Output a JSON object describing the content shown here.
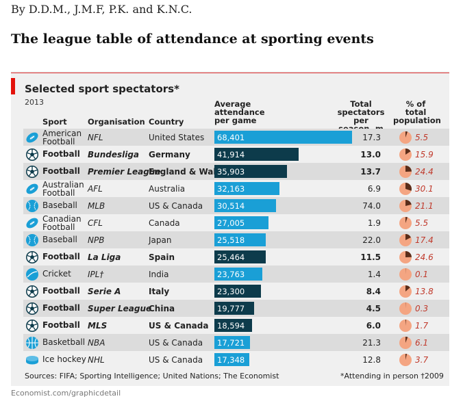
{
  "byline": "By D.D.M., J.M.F, P.K. and K.N.C.",
  "headline": "The league table of attendance at sporting events",
  "chart_data": {
    "type": "table",
    "title": "Selected sport spectators*",
    "subtitle": "2013",
    "columns": {
      "sport": "Sport",
      "organisation": "Organisation",
      "country": "Country",
      "attendance": "Average\nattendance\nper game",
      "total": "Total\nspectators per\nseason, m",
      "pct": "% of\ntotal\npopulation"
    },
    "attendance_max": 68401,
    "colors": {
      "football": "#0d3b4b",
      "other": "#1a9fd6",
      "pie_bg": "#f4a582",
      "pie_fill": "#5a2d1a",
      "pct_text": "#c0392b",
      "accent": "#e3120b"
    },
    "rows": [
      {
        "sport": "American\nFootball",
        "icon": "american-football-icon",
        "org": "NFL",
        "country": "United States",
        "attendance": 68401,
        "attendance_label": "68,401",
        "total": "17.3",
        "pct": 5.5,
        "pct_label": "5.5",
        "football": false
      },
      {
        "sport": "Football",
        "icon": "soccer-ball-icon",
        "org": "Bundesliga",
        "country": "Germany",
        "attendance": 41914,
        "attendance_label": "41,914",
        "total": "13.0",
        "pct": 15.9,
        "pct_label": "15.9",
        "football": true
      },
      {
        "sport": "Football",
        "icon": "soccer-ball-icon",
        "org": "Premier League",
        "country": "England & Wales",
        "attendance": 35903,
        "attendance_label": "35,903",
        "total": "13.7",
        "pct": 24.4,
        "pct_label": "24.4",
        "football": true
      },
      {
        "sport": "Australian\nFootball",
        "icon": "australian-football-icon",
        "org": "AFL",
        "country": "Australia",
        "attendance": 32163,
        "attendance_label": "32,163",
        "total": "6.9",
        "pct": 30.1,
        "pct_label": "30.1",
        "football": false
      },
      {
        "sport": "Baseball",
        "icon": "baseball-icon",
        "org": "MLB",
        "country": "US & Canada",
        "attendance": 30514,
        "attendance_label": "30,514",
        "total": "74.0",
        "pct": 21.1,
        "pct_label": "21.1",
        "football": false
      },
      {
        "sport": "Canadian\nFootball",
        "icon": "canadian-football-icon",
        "org": "CFL",
        "country": "Canada",
        "attendance": 27005,
        "attendance_label": "27,005",
        "total": "1.9",
        "pct": 5.5,
        "pct_label": "5.5",
        "football": false
      },
      {
        "sport": "Baseball",
        "icon": "baseball-icon",
        "org": "NPB",
        "country": "Japan",
        "attendance": 25518,
        "attendance_label": "25,518",
        "total": "22.0",
        "pct": 17.4,
        "pct_label": "17.4",
        "football": false
      },
      {
        "sport": "Football",
        "icon": "soccer-ball-icon",
        "org": "La Liga",
        "country": "Spain",
        "attendance": 25464,
        "attendance_label": "25,464",
        "total": "11.5",
        "pct": 24.6,
        "pct_label": "24.6",
        "football": true
      },
      {
        "sport": "Cricket",
        "icon": "cricket-ball-icon",
        "org": "IPL†",
        "country": "India",
        "attendance": 23763,
        "attendance_label": "23,763",
        "total": "1.4",
        "pct": 0.1,
        "pct_label": "0.1",
        "football": false
      },
      {
        "sport": "Football",
        "icon": "soccer-ball-icon",
        "org": "Serie A",
        "country": "Italy",
        "attendance": 23300,
        "attendance_label": "23,300",
        "total": "8.4",
        "pct": 13.8,
        "pct_label": "13.8",
        "football": true
      },
      {
        "sport": "Football",
        "icon": "soccer-ball-icon",
        "org": "Super League",
        "country": "China",
        "attendance": 19777,
        "attendance_label": "19,777",
        "total": "4.5",
        "pct": 0.3,
        "pct_label": "0.3",
        "football": true
      },
      {
        "sport": "Football",
        "icon": "soccer-ball-icon",
        "org": "MLS",
        "country": "US & Canada",
        "attendance": 18594,
        "attendance_label": "18,594",
        "total": "6.0",
        "pct": 1.7,
        "pct_label": "1.7",
        "football": true
      },
      {
        "sport": "Basketball",
        "icon": "basketball-icon",
        "org": "NBA",
        "country": "US & Canada",
        "attendance": 17721,
        "attendance_label": "17,721",
        "total": "21.3",
        "pct": 6.1,
        "pct_label": "6.1",
        "football": false
      },
      {
        "sport": "Ice hockey",
        "icon": "hockey-puck-icon",
        "org": "NHL",
        "country": "US & Canada",
        "attendance": 17348,
        "attendance_label": "17,348",
        "total": "12.8",
        "pct": 3.7,
        "pct_label": "3.7",
        "football": false
      }
    ],
    "sources": "Sources: FIFA; Sporting Intelligence; United Nations; The Economist",
    "footnote": "*Attending in person  †2009"
  },
  "url": "Economist.com/graphicdetail"
}
